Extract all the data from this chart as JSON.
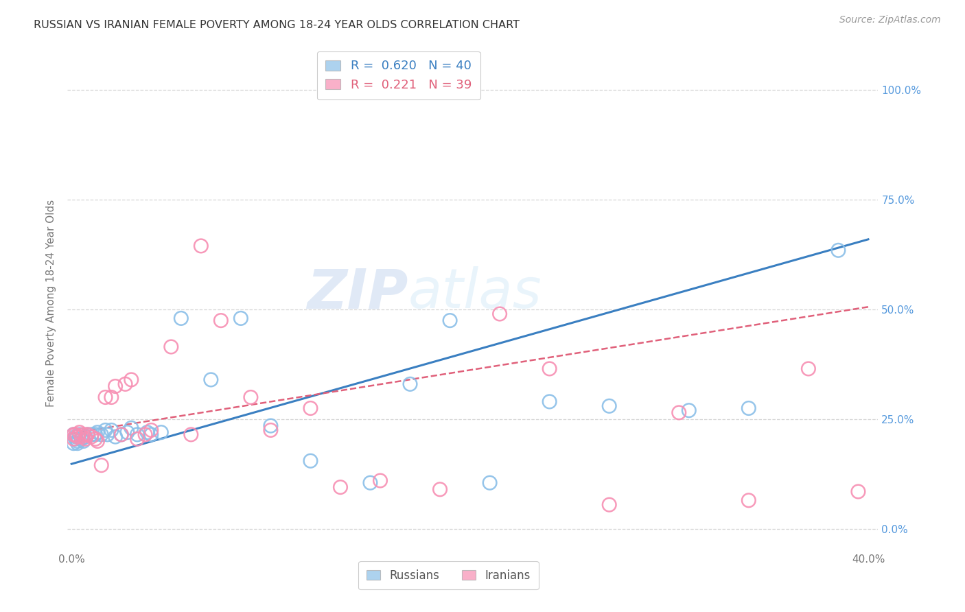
{
  "title": "RUSSIAN VS IRANIAN FEMALE POVERTY AMONG 18-24 YEAR OLDS CORRELATION CHART",
  "source": "Source: ZipAtlas.com",
  "ylabel": "Female Poverty Among 18-24 Year Olds",
  "xlim": [
    -0.002,
    0.405
  ],
  "ylim": [
    -0.05,
    1.08
  ],
  "ytick_positions": [
    0.0,
    0.25,
    0.5,
    0.75,
    1.0
  ],
  "ytick_labels": [
    "0.0%",
    "25.0%",
    "50.0%",
    "75.0%",
    "100.0%"
  ],
  "xtick_positions": [
    0.0,
    0.05,
    0.1,
    0.15,
    0.2,
    0.25,
    0.3,
    0.35,
    0.4
  ],
  "xtick_labels": [
    "0.0%",
    "",
    "",
    "",
    "",
    "",
    "",
    "",
    "40.0%"
  ],
  "watermark": "ZIPatlas",
  "russian_color": "#8bbfe8",
  "iranian_color": "#f78fb3",
  "russian_line_color": "#3a7fc1",
  "iranian_line_color": "#e0607a",
  "russians_label": "Russians",
  "iranians_label": "Iranians",
  "russian_R": 0.62,
  "iranian_R": 0.221,
  "russian_N": 40,
  "iranian_N": 39,
  "russian_x": [
    0.001,
    0.001,
    0.002,
    0.002,
    0.003,
    0.003,
    0.004,
    0.005,
    0.006,
    0.007,
    0.008,
    0.01,
    0.012,
    0.013,
    0.015,
    0.017,
    0.018,
    0.02,
    0.022,
    0.025,
    0.028,
    0.03,
    0.033,
    0.038,
    0.04,
    0.045,
    0.055,
    0.07,
    0.085,
    0.1,
    0.12,
    0.15,
    0.17,
    0.19,
    0.21,
    0.24,
    0.27,
    0.31,
    0.34,
    0.385
  ],
  "russian_y": [
    0.215,
    0.195,
    0.21,
    0.205,
    0.2,
    0.195,
    0.215,
    0.205,
    0.2,
    0.21,
    0.215,
    0.215,
    0.215,
    0.22,
    0.215,
    0.225,
    0.215,
    0.225,
    0.21,
    0.215,
    0.22,
    0.23,
    0.215,
    0.22,
    0.215,
    0.22,
    0.48,
    0.34,
    0.48,
    0.235,
    0.155,
    0.105,
    0.33,
    0.475,
    0.105,
    0.29,
    0.28,
    0.27,
    0.275,
    0.635
  ],
  "iranian_x": [
    0.001,
    0.001,
    0.002,
    0.003,
    0.004,
    0.005,
    0.006,
    0.007,
    0.008,
    0.01,
    0.012,
    0.013,
    0.015,
    0.017,
    0.02,
    0.022,
    0.025,
    0.027,
    0.03,
    0.033,
    0.037,
    0.04,
    0.05,
    0.06,
    0.065,
    0.075,
    0.09,
    0.1,
    0.12,
    0.135,
    0.155,
    0.185,
    0.215,
    0.24,
    0.27,
    0.305,
    0.34,
    0.37,
    0.395
  ],
  "iranian_y": [
    0.215,
    0.205,
    0.215,
    0.21,
    0.22,
    0.21,
    0.215,
    0.205,
    0.215,
    0.21,
    0.205,
    0.2,
    0.145,
    0.3,
    0.3,
    0.325,
    0.215,
    0.33,
    0.34,
    0.205,
    0.215,
    0.225,
    0.415,
    0.215,
    0.645,
    0.475,
    0.3,
    0.225,
    0.275,
    0.095,
    0.11,
    0.09,
    0.49,
    0.365,
    0.055,
    0.265,
    0.065,
    0.365,
    0.085
  ],
  "background_color": "#ffffff",
  "grid_color": "#cccccc",
  "ru_line_intercept": 0.148,
  "ru_line_slope": 1.28,
  "ir_line_intercept": 0.218,
  "ir_line_slope": 0.72
}
